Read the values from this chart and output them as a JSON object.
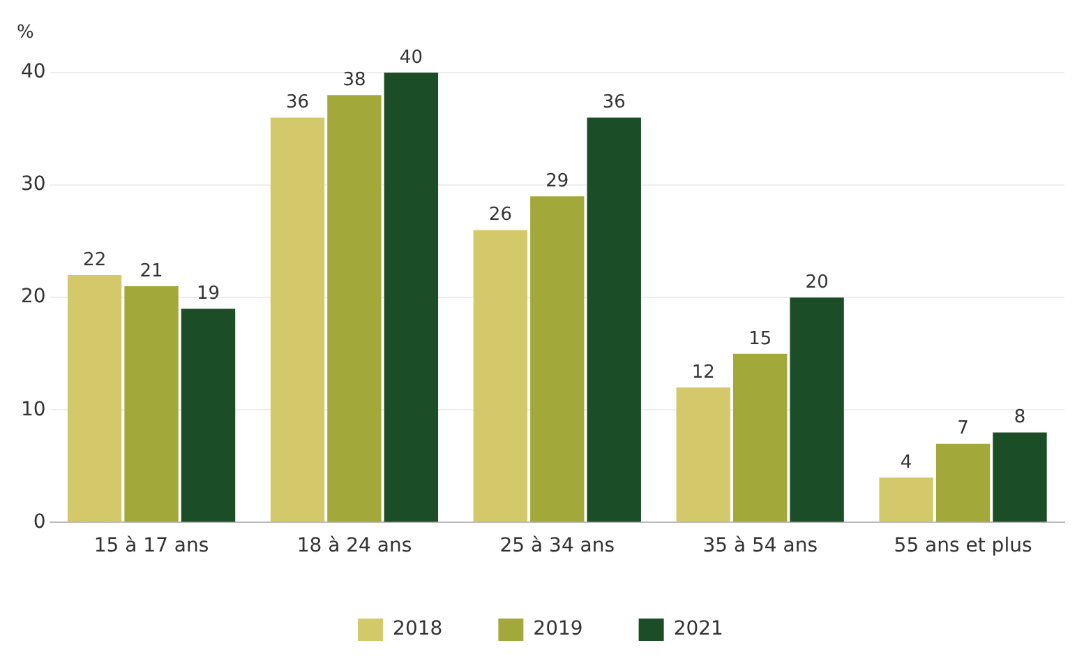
{
  "chart_data": {
    "type": "bar",
    "ylabel": "%",
    "categories": [
      "15 à 17 ans",
      "18 à 24 ans",
      "25 à 34 ans",
      "35 à 54 ans",
      "55 ans et plus"
    ],
    "series": [
      {
        "name": "2018",
        "color": "#d4c96a",
        "values": [
          22,
          36,
          26,
          12,
          4
        ]
      },
      {
        "name": "2019",
        "color": "#a3a83a",
        "values": [
          21,
          38,
          29,
          15,
          7
        ]
      },
      {
        "name": "2021",
        "color": "#1b4d26",
        "values": [
          19,
          40,
          36,
          20,
          8
        ]
      }
    ],
    "ylim": [
      0,
      40
    ],
    "yticks": [
      0,
      10,
      20,
      30,
      40
    ],
    "grid": "y",
    "legend": "bottom",
    "data_labels": true
  }
}
